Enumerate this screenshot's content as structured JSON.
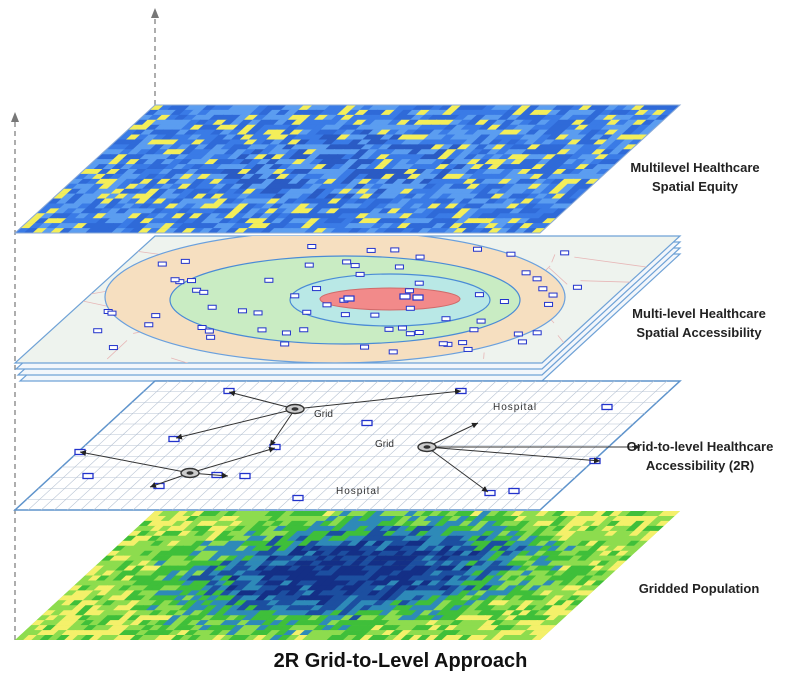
{
  "layers": [
    {
      "id": "equity",
      "label_line1": "Multilevel Healthcare",
      "label_line2": "Spatial Equity",
      "colors": [
        "#3a7be6",
        "#5b9df0",
        "#2f6ad8",
        "#f3ee5a",
        "#2a5bc4"
      ]
    },
    {
      "id": "accessibility",
      "label_line1": "Multi-level Healthcare",
      "label_line2": "Spatial Accessibility",
      "zone_colors": [
        "#f6dfc0",
        "#c9ecc3",
        "#b9e8e6",
        "#f28a8a"
      ]
    },
    {
      "id": "grid2level",
      "label_line1": "Grid-to-level Healthcare",
      "label_line2": "Accessibility (2R)",
      "grid_text": "Grid",
      "hospital_text": "Hospital",
      "hospital_marker": "H"
    },
    {
      "id": "population",
      "label_line1": "Gridded Population",
      "colors": [
        "#f4f06a",
        "#8ddc4e",
        "#3fbf3a",
        "#2e8ab8",
        "#1c4fa0",
        "#142f86"
      ]
    }
  ],
  "caption": "2R Grid-to-Level Approach"
}
